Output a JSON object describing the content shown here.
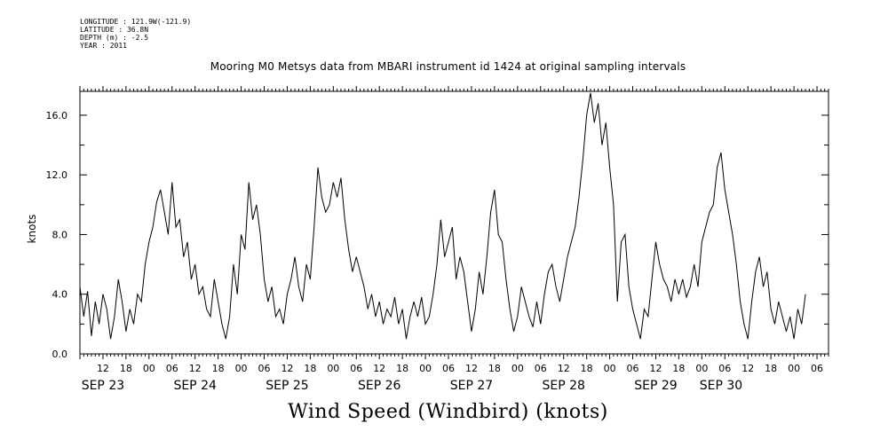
{
  "meta": {
    "longitude": "LONGITUDE : 121.9W(-121.9)",
    "latitude": "LATITUDE : 36.8N",
    "depth": "DEPTH (m) : -2.5",
    "year": "YEAR : 2011"
  },
  "chart_data": {
    "type": "line",
    "title": "Mooring M0 Metsys data from MBARI instrument id 1424 at original sampling intervals",
    "bottom_title": "Wind Speed (Windbird) (knots)",
    "ylabel": "knots",
    "xlabel": "",
    "ylim": [
      0,
      17.6
    ],
    "yticks": [
      "0.0",
      "4.0",
      "8.0",
      "12.0",
      "16.0"
    ],
    "x_unit": "hours since Sep 22 2011 00:00",
    "xlim": [
      6,
      201
    ],
    "hour_ticks": [
      {
        "h": 12,
        "label": "12"
      },
      {
        "h": 18,
        "label": "18"
      },
      {
        "h": 24,
        "label": "00"
      },
      {
        "h": 30,
        "label": "06"
      },
      {
        "h": 36,
        "label": "12"
      },
      {
        "h": 42,
        "label": "18"
      },
      {
        "h": 48,
        "label": "00"
      },
      {
        "h": 54,
        "label": "06"
      },
      {
        "h": 60,
        "label": "12"
      },
      {
        "h": 66,
        "label": "18"
      },
      {
        "h": 72,
        "label": "00"
      },
      {
        "h": 78,
        "label": "06"
      },
      {
        "h": 84,
        "label": "12"
      },
      {
        "h": 90,
        "label": "18"
      },
      {
        "h": 96,
        "label": "00"
      },
      {
        "h": 102,
        "label": "06"
      },
      {
        "h": 108,
        "label": "12"
      },
      {
        "h": 114,
        "label": "18"
      },
      {
        "h": 120,
        "label": "00"
      },
      {
        "h": 126,
        "label": "06"
      },
      {
        "h": 132,
        "label": "12"
      },
      {
        "h": 138,
        "label": "18"
      },
      {
        "h": 144,
        "label": "00"
      },
      {
        "h": 150,
        "label": "06"
      },
      {
        "h": 156,
        "label": "12"
      },
      {
        "h": 162,
        "label": "18"
      },
      {
        "h": 168,
        "label": "00"
      },
      {
        "h": 174,
        "label": "06"
      },
      {
        "h": 180,
        "label": "12"
      },
      {
        "h": 186,
        "label": "18"
      },
      {
        "h": 192,
        "label": "00"
      },
      {
        "h": 198,
        "label": "06"
      }
    ],
    "date_labels": [
      {
        "h": 12,
        "label": "SEP 23"
      },
      {
        "h": 36,
        "label": "SEP 24"
      },
      {
        "h": 60,
        "label": "SEP 25"
      },
      {
        "h": 84,
        "label": "SEP 26"
      },
      {
        "h": 108,
        "label": "SEP 27"
      },
      {
        "h": 132,
        "label": "SEP 28"
      },
      {
        "h": 156,
        "label": "SEP 29"
      },
      {
        "h": 173,
        "label": "SEP 30"
      }
    ],
    "series": [
      {
        "points": [
          [
            6,
            4.5
          ],
          [
            7,
            2.5
          ],
          [
            8,
            4.2
          ],
          [
            9,
            1.2
          ],
          [
            10,
            3.5
          ],
          [
            11,
            2.0
          ],
          [
            12,
            4.0
          ],
          [
            13,
            3.0
          ],
          [
            14,
            1.0
          ],
          [
            15,
            2.5
          ],
          [
            16,
            5.0
          ],
          [
            17,
            3.5
          ],
          [
            18,
            1.5
          ],
          [
            19,
            3.0
          ],
          [
            20,
            2.0
          ],
          [
            21,
            4.0
          ],
          [
            22,
            3.5
          ],
          [
            23,
            6.0
          ],
          [
            24,
            7.5
          ],
          [
            25,
            8.5
          ],
          [
            26,
            10.2
          ],
          [
            27,
            11.0
          ],
          [
            28,
            9.5
          ],
          [
            29,
            8.0
          ],
          [
            30,
            11.5
          ],
          [
            31,
            8.5
          ],
          [
            32,
            9.0
          ],
          [
            33,
            6.5
          ],
          [
            34,
            7.5
          ],
          [
            35,
            5.0
          ],
          [
            36,
            6.0
          ],
          [
            37,
            4.0
          ],
          [
            38,
            4.5
          ],
          [
            39,
            3.0
          ],
          [
            40,
            2.5
          ],
          [
            41,
            5.0
          ],
          [
            42,
            3.5
          ],
          [
            43,
            2.0
          ],
          [
            44,
            1.0
          ],
          [
            45,
            2.5
          ],
          [
            46,
            6.0
          ],
          [
            47,
            4.0
          ],
          [
            48,
            8.0
          ],
          [
            49,
            7.0
          ],
          [
            50,
            11.5
          ],
          [
            51,
            9.0
          ],
          [
            52,
            10.0
          ],
          [
            53,
            8.0
          ],
          [
            54,
            5.0
          ],
          [
            55,
            3.5
          ],
          [
            56,
            4.5
          ],
          [
            57,
            2.5
          ],
          [
            58,
            3.0
          ],
          [
            59,
            2.0
          ],
          [
            60,
            4.0
          ],
          [
            61,
            5.0
          ],
          [
            62,
            6.5
          ],
          [
            63,
            4.5
          ],
          [
            64,
            3.5
          ],
          [
            65,
            6.0
          ],
          [
            66,
            5.0
          ],
          [
            67,
            8.5
          ],
          [
            68,
            12.5
          ],
          [
            69,
            10.5
          ],
          [
            70,
            9.5
          ],
          [
            71,
            10.0
          ],
          [
            72,
            11.5
          ],
          [
            73,
            10.5
          ],
          [
            74,
            11.8
          ],
          [
            75,
            9.0
          ],
          [
            76,
            7.0
          ],
          [
            77,
            5.5
          ],
          [
            78,
            6.5
          ],
          [
            79,
            5.5
          ],
          [
            80,
            4.5
          ],
          [
            81,
            3.0
          ],
          [
            82,
            4.0
          ],
          [
            83,
            2.5
          ],
          [
            84,
            3.5
          ],
          [
            85,
            2.0
          ],
          [
            86,
            3.0
          ],
          [
            87,
            2.5
          ],
          [
            88,
            3.8
          ],
          [
            89,
            2.0
          ],
          [
            90,
            3.0
          ],
          [
            91,
            1.0
          ],
          [
            92,
            2.5
          ],
          [
            93,
            3.5
          ],
          [
            94,
            2.5
          ],
          [
            95,
            3.8
          ],
          [
            96,
            2.0
          ],
          [
            97,
            2.5
          ],
          [
            98,
            4.0
          ],
          [
            99,
            6.0
          ],
          [
            100,
            9.0
          ],
          [
            101,
            6.5
          ],
          [
            102,
            7.5
          ],
          [
            103,
            8.5
          ],
          [
            104,
            5.0
          ],
          [
            105,
            6.5
          ],
          [
            106,
            5.5
          ],
          [
            107,
            3.5
          ],
          [
            108,
            1.5
          ],
          [
            109,
            3.0
          ],
          [
            110,
            5.5
          ],
          [
            111,
            4.0
          ],
          [
            112,
            6.5
          ],
          [
            113,
            9.5
          ],
          [
            114,
            11.0
          ],
          [
            115,
            8.0
          ],
          [
            116,
            7.5
          ],
          [
            117,
            5.0
          ],
          [
            118,
            3.0
          ],
          [
            119,
            1.5
          ],
          [
            120,
            2.5
          ],
          [
            121,
            4.5
          ],
          [
            122,
            3.5
          ],
          [
            123,
            2.5
          ],
          [
            124,
            1.8
          ],
          [
            125,
            3.5
          ],
          [
            126,
            2.0
          ],
          [
            127,
            4.0
          ],
          [
            128,
            5.5
          ],
          [
            129,
            6.0
          ],
          [
            130,
            4.5
          ],
          [
            131,
            3.5
          ],
          [
            132,
            5.0
          ],
          [
            133,
            6.5
          ],
          [
            134,
            7.5
          ],
          [
            135,
            8.5
          ],
          [
            136,
            10.5
          ],
          [
            137,
            13.0
          ],
          [
            138,
            16.0
          ],
          [
            139,
            17.5
          ],
          [
            140,
            15.5
          ],
          [
            141,
            16.8
          ],
          [
            142,
            14.0
          ],
          [
            143,
            15.5
          ],
          [
            144,
            12.5
          ],
          [
            145,
            10.0
          ],
          [
            146,
            3.5
          ],
          [
            147,
            7.5
          ],
          [
            148,
            8.0
          ],
          [
            149,
            4.5
          ],
          [
            150,
            3.0
          ],
          [
            151,
            2.0
          ],
          [
            152,
            1.0
          ],
          [
            153,
            3.0
          ],
          [
            154,
            2.5
          ],
          [
            155,
            5.0
          ],
          [
            156,
            7.5
          ],
          [
            157,
            6.0
          ],
          [
            158,
            5.0
          ],
          [
            159,
            4.5
          ],
          [
            160,
            3.5
          ],
          [
            161,
            5.0
          ],
          [
            162,
            4.0
          ],
          [
            163,
            5.0
          ],
          [
            164,
            3.8
          ],
          [
            165,
            4.5
          ],
          [
            166,
            6.0
          ],
          [
            167,
            4.5
          ],
          [
            168,
            7.5
          ],
          [
            169,
            8.5
          ],
          [
            170,
            9.5
          ],
          [
            171,
            10.0
          ],
          [
            172,
            12.5
          ],
          [
            173,
            13.5
          ],
          [
            174,
            11.0
          ],
          [
            175,
            9.5
          ],
          [
            176,
            8.0
          ],
          [
            177,
            6.0
          ],
          [
            178,
            3.5
          ],
          [
            179,
            2.0
          ],
          [
            180,
            1.0
          ],
          [
            181,
            3.5
          ],
          [
            182,
            5.5
          ],
          [
            183,
            6.5
          ],
          [
            184,
            4.5
          ],
          [
            185,
            5.5
          ],
          [
            186,
            3.0
          ],
          [
            187,
            2.0
          ],
          [
            188,
            3.5
          ],
          [
            189,
            2.5
          ],
          [
            190,
            1.5
          ],
          [
            191,
            2.5
          ],
          [
            192,
            1.0
          ],
          [
            193,
            3.0
          ],
          [
            194,
            2.0
          ],
          [
            195,
            4.0
          ]
        ]
      }
    ]
  }
}
